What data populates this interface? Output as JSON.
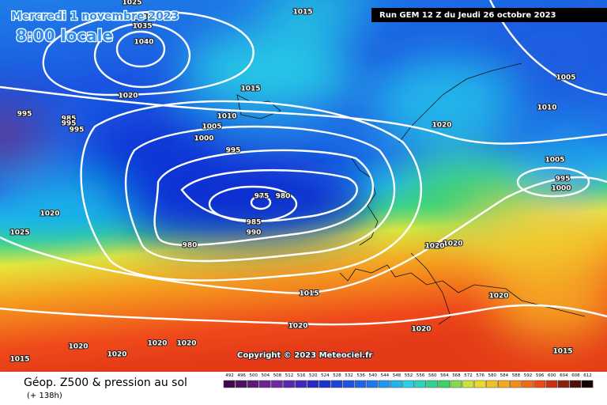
{
  "header": {
    "date": "Mercredi 1 novembre 2023",
    "time": "8:00 locale"
  },
  "run": "Run GEM 12 Z du Jeudi 26 octobre 2023",
  "copyright": "Copyright © 2023 Meteociel.fr",
  "legend": {
    "title": "Géop. Z500 & pression au sol",
    "lead": "(+ 138h)"
  },
  "scale": {
    "labels": [
      492,
      496,
      500,
      504,
      508,
      512,
      516,
      520,
      524,
      528,
      532,
      536,
      540,
      544,
      548,
      552,
      556,
      560,
      564,
      568,
      572,
      576,
      580,
      584,
      588,
      592,
      596,
      600,
      604,
      608,
      612
    ]
  },
  "isobars": {
    "labels": [
      1025,
      1015,
      1030,
      1035,
      1040,
      1015,
      1020,
      1010,
      995,
      985,
      995,
      995,
      1005,
      1000,
      995,
      1020,
      1005,
      1010,
      1005,
      995,
      1000,
      975,
      980,
      985,
      990,
      980,
      1020,
      1025,
      1020,
      1020,
      1015,
      1020,
      1020,
      1020,
      1020,
      1020,
      1020,
      1020,
      1015,
      1015
    ]
  }
}
